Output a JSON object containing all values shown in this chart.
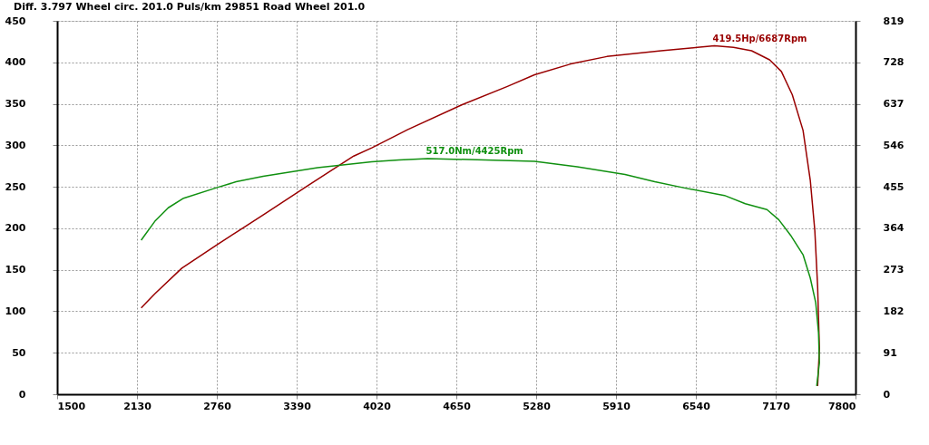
{
  "chart_data": {
    "type": "line",
    "title": "Diff.   3.797   Wheel circ. 201.0   Puls/km   29851   Road Wheel 201.0",
    "xlim": [
      1500,
      7800
    ],
    "xticks": [
      1500,
      2130,
      2760,
      3390,
      4020,
      4650,
      5280,
      5910,
      6540,
      7170,
      7800
    ],
    "ylim": [
      0,
      450
    ],
    "yticks": [
      0,
      50,
      100,
      150,
      200,
      250,
      300,
      350,
      400,
      450
    ],
    "y2lim": [
      0,
      819
    ],
    "y2ticks": [
      0,
      91,
      182,
      273,
      364,
      455,
      546,
      637,
      728,
      819
    ],
    "grid": true,
    "line_style": "solid",
    "marker": "none",
    "series": [
      {
        "color": "#990000",
        "x": [
          2163,
          2270,
          2484,
          2769,
          3126,
          3483,
          3840,
          3983,
          4268,
          4696,
          5053,
          5267,
          5552,
          5838,
          6266,
          6552,
          6687,
          6837,
          6980,
          7122,
          7215,
          7301,
          7386,
          7443,
          7479,
          7501,
          7515,
          7501
        ],
        "values": [
          104,
          121,
          152,
          181,
          216,
          252,
          287,
          297,
          319,
          349,
          371,
          385,
          398,
          407,
          414,
          418,
          420,
          418,
          414,
          403,
          389,
          361,
          318,
          258,
          197,
          130,
          55,
          10
        ]
      },
      {
        "color": "#109010",
        "axis": "y2",
        "x": [
          2163,
          2270,
          2377,
          2498,
          2769,
          2912,
          3126,
          3555,
          3983,
          4197,
          4425,
          5267,
          5603,
          5981,
          6216,
          6459,
          6766,
          6930,
          7101,
          7194,
          7287,
          7386,
          7443,
          7486,
          7508,
          7515,
          7494
        ],
        "values": [
          338,
          379,
          409,
          430,
          454,
          466,
          478,
          497,
          510,
          514,
          517,
          511,
          499,
          482,
          466,
          452,
          436,
          418,
          405,
          383,
          349,
          306,
          255,
          201,
          136,
          69,
          18
        ]
      }
    ],
    "annotations": [
      {
        "text": "419.5Hp/6687Rpm",
        "x": 6687,
        "y": 419.5
      },
      {
        "text": "517.0Nm/4425Rpm",
        "x": 4425,
        "y": 284
      }
    ]
  }
}
